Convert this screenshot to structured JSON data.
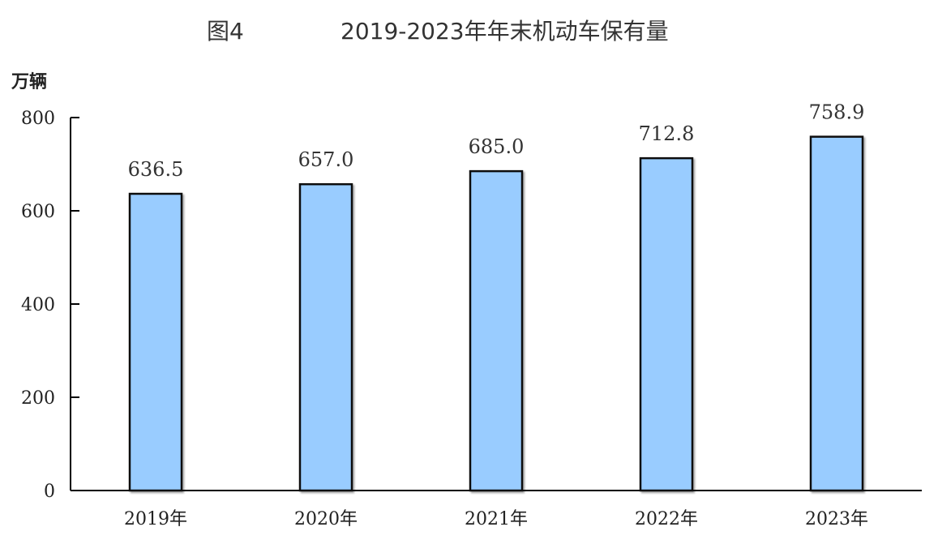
{
  "chart_data": {
    "type": "bar",
    "figure_label": "图4",
    "title": "2019-2023年年末机动车保有量",
    "ylabel": "万辆",
    "xlabel": "",
    "categories": [
      "2019年",
      "2020年",
      "2021年",
      "2022年",
      "2023年"
    ],
    "values": [
      636.5,
      657.0,
      685.0,
      712.8,
      758.9
    ],
    "data_labels": [
      "636.5",
      "657.0",
      "685.0",
      "712.8",
      "758.9"
    ],
    "ylim": [
      0,
      800
    ],
    "yticks": [
      0,
      200,
      400,
      600,
      800
    ],
    "grid": false,
    "legend": "none",
    "bar_color": "#99ccff",
    "bar_border_color": "#111111"
  }
}
